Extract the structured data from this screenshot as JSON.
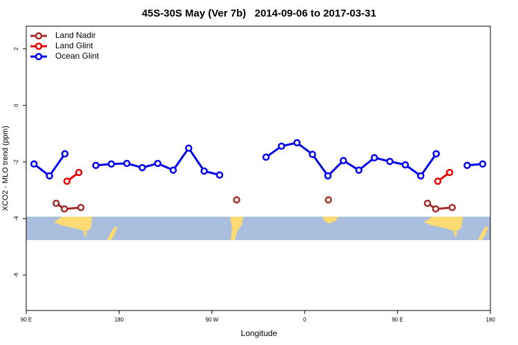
{
  "chart_data": {
    "type": "line",
    "title": "45S-30S May (Ver 7b)   2014-09-06 to 2017-03-31",
    "x_label": "Longitude",
    "y_label": "XCO2 - MLO trend (ppm)",
    "xlim": [
      90,
      540
    ],
    "ylim": [
      -7.25,
      2.8
    ],
    "xticks": [
      {
        "value": 90,
        "label": "90 E"
      },
      180,
      {
        "value": 270,
        "label": "90 W"
      },
      {
        "value": 360,
        "label": "0"
      },
      {
        "value": 450,
        "label": "90 E"
      },
      {
        "value": 540,
        "label": "180"
      }
    ],
    "yticks": [
      -6,
      -4,
      -2,
      0,
      2
    ],
    "legend": "top-left",
    "series": [
      {
        "name": "Land Nadir",
        "color": "#a52a2a",
        "x": [
          119,
          127,
          143,
          null,
          294,
          null,
          383,
          null,
          479,
          487,
          503
        ],
        "values": [
          -3.46,
          -3.66,
          -3.61,
          null,
          -3.34,
          null,
          -3.34,
          null,
          -3.46,
          -3.66,
          -3.61
        ]
      },
      {
        "name": "Land Glint",
        "color": "#ee0000",
        "x": [
          129.5,
          141,
          null,
          489,
          500.5
        ],
        "values": [
          -2.68,
          -2.37,
          null,
          -2.68,
          -2.37
        ]
      },
      {
        "name": "Ocean Glint",
        "color": "#0000ee",
        "x": [
          97.5,
          112.5,
          127.5,
          null,
          157.5,
          172.5,
          187.5,
          202.5,
          217.5,
          232.5,
          247.5,
          262.5,
          277.5,
          null,
          322.5,
          337.5,
          352.5,
          367.5,
          382.5,
          397.5,
          412.5,
          427.5,
          442.5,
          457.5,
          472.5,
          487.5,
          null,
          517.5,
          532.5
        ],
        "values": [
          -2.07,
          -2.49,
          -1.71,
          null,
          -2.12,
          -2.07,
          -2.05,
          -2.2,
          -2.05,
          -2.29,
          -1.51,
          -2.32,
          -2.46,
          null,
          -1.83,
          -1.44,
          -1.32,
          -1.73,
          -2.49,
          -1.95,
          -2.29,
          -1.85,
          -1.98,
          -2.1,
          -2.49,
          -1.71,
          null,
          -2.12,
          -2.07
        ]
      }
    ]
  }
}
